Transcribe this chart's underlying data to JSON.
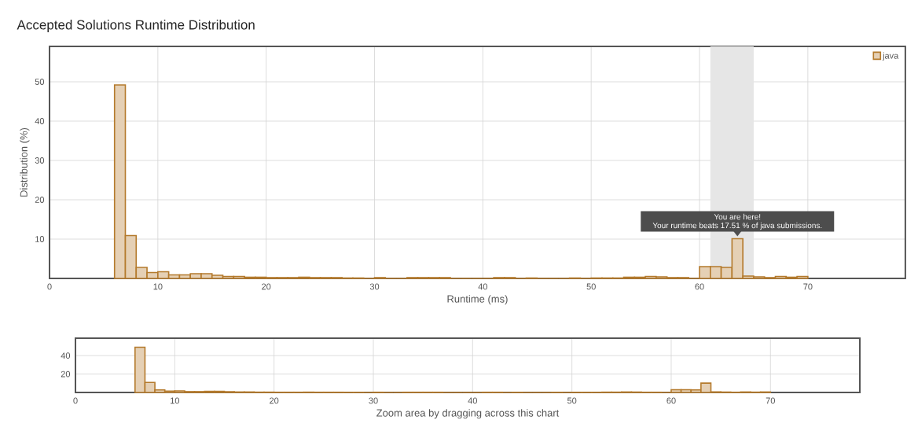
{
  "chart_data": [
    {
      "type": "histogram",
      "title": "Accepted Solutions Runtime Distribution",
      "xlabel": "Runtime (ms)",
      "ylabel": "Distribution (%)",
      "bins": [
        6,
        7,
        8,
        9,
        10,
        11,
        12,
        13,
        14,
        15,
        16,
        17,
        18,
        19,
        20,
        21,
        22,
        23,
        24,
        25,
        26,
        27,
        28,
        29,
        30,
        31,
        32,
        33,
        34,
        35,
        36,
        37,
        38,
        39,
        40,
        41,
        42,
        43,
        44,
        45,
        46,
        47,
        48,
        49,
        50,
        51,
        52,
        53,
        54,
        55,
        56,
        57,
        58,
        59,
        60,
        61,
        62,
        63,
        64,
        65,
        66,
        67,
        68,
        69,
        70
      ],
      "series": [
        {
          "name": "java",
          "color": "#b47a2c",
          "values": [
            49.2,
            10.9,
            2.8,
            1.5,
            1.7,
            0.9,
            0.9,
            1.2,
            1.2,
            0.8,
            0.5,
            0.5,
            0.3,
            0.3,
            0.2,
            0.2,
            0.2,
            0.3,
            0.2,
            0.2,
            0.2,
            0.1,
            0.1,
            0,
            0.2,
            0,
            0,
            0.2,
            0.2,
            0.2,
            0.2,
            0,
            0,
            0,
            0,
            0.2,
            0.2,
            0,
            0.1,
            0,
            0,
            0,
            0.1,
            0,
            0.1,
            0.1,
            0.1,
            0.3,
            0.3,
            0.5,
            0.4,
            0.2,
            0.2,
            0,
            3,
            3,
            2.8,
            10.1,
            0.6,
            0.4,
            0.2,
            0.5,
            0.3,
            0.5
          ]
        }
      ],
      "xlim": [
        0,
        79
      ],
      "ylim": [
        0,
        59
      ],
      "xticks": [
        0,
        10,
        20,
        30,
        40,
        50,
        60,
        70
      ],
      "yticks": [
        10,
        20,
        30,
        40,
        50
      ],
      "grid": true,
      "legend": "top right",
      "bands": [
        {
          "axis": "x",
          "from": 61,
          "to": 65,
          "color": "#e6e6e6"
        }
      ],
      "annotations": [
        {
          "text": "You are here!",
          "x": 63.5,
          "y": 10.1
        },
        {
          "text": "Your runtime beats 17.51 % of java submissions.",
          "x": 63.5,
          "y": 10.1
        }
      ]
    },
    {
      "type": "histogram",
      "xlabel": "Zoom area by dragging across this chart",
      "bins": [
        6,
        7,
        8,
        9,
        10,
        11,
        12,
        13,
        14,
        15,
        16,
        17,
        18,
        19,
        20,
        21,
        22,
        23,
        24,
        25,
        26,
        27,
        28,
        29,
        30,
        31,
        32,
        33,
        34,
        35,
        36,
        37,
        38,
        39,
        40,
        41,
        42,
        43,
        44,
        45,
        46,
        47,
        48,
        49,
        50,
        51,
        52,
        53,
        54,
        55,
        56,
        57,
        58,
        59,
        60,
        61,
        62,
        63,
        64,
        65,
        66,
        67,
        68,
        69,
        70
      ],
      "values": [
        49.2,
        10.9,
        2.8,
        1.5,
        1.7,
        0.9,
        0.9,
        1.2,
        1.2,
        0.8,
        0.5,
        0.5,
        0.3,
        0.3,
        0.2,
        0.2,
        0.2,
        0.3,
        0.2,
        0.2,
        0.2,
        0.1,
        0.1,
        0,
        0.2,
        0,
        0,
        0.2,
        0.2,
        0.2,
        0.2,
        0,
        0,
        0,
        0,
        0.2,
        0.2,
        0,
        0.1,
        0,
        0,
        0,
        0.1,
        0,
        0.1,
        0.1,
        0.1,
        0.3,
        0.3,
        0.5,
        0.4,
        0.2,
        0.2,
        0,
        3,
        3,
        2.8,
        10.1,
        0.6,
        0.4,
        0.2,
        0.5,
        0.3,
        0.5
      ],
      "color": "#b47a2c",
      "xlim": [
        0,
        79
      ],
      "ylim": [
        0,
        59
      ],
      "xticks": [
        0,
        10,
        20,
        30,
        40,
        50,
        60,
        70
      ],
      "yticks": [
        20,
        40
      ],
      "grid": true
    }
  ]
}
